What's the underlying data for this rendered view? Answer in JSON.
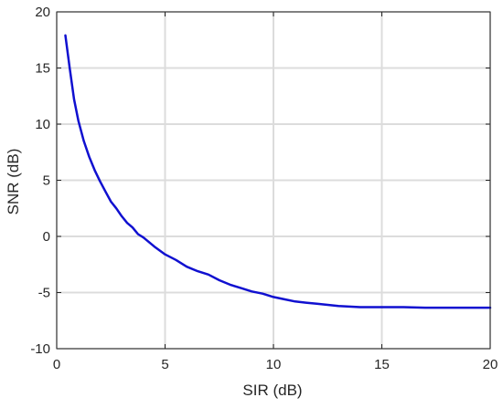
{
  "chart_data": {
    "type": "line",
    "title": "",
    "xlabel": "SIR (dB)",
    "ylabel": "SNR (dB)",
    "xlim": [
      0,
      20
    ],
    "ylim": [
      -10,
      20
    ],
    "xticks": [
      0,
      5,
      10,
      15,
      20
    ],
    "yticks": [
      -10,
      -5,
      0,
      5,
      10,
      15,
      20
    ],
    "xtick_labels": [
      "0",
      "5",
      "10",
      "15",
      "20"
    ],
    "ytick_labels": [
      "-10",
      "-5",
      "0",
      "5",
      "10",
      "15",
      "20"
    ],
    "grid": true,
    "legend": "none",
    "line_color": "#1010d0",
    "grid_color": "#dcdcdc",
    "series": [
      {
        "x": [
          0.4,
          0.6,
          0.8,
          1.0,
          1.25,
          1.5,
          1.75,
          2.0,
          2.25,
          2.5,
          2.75,
          3.0,
          3.25,
          3.5,
          3.75,
          4.0,
          4.25,
          4.5,
          5.0,
          5.5,
          6.0,
          6.5,
          7.0,
          7.5,
          8.0,
          8.5,
          9.0,
          9.5,
          10.0,
          10.5,
          11.0,
          11.5,
          12.0,
          12.5,
          13.0,
          13.5,
          14.0,
          15.0,
          16.0,
          17.0,
          18.0,
          19.0,
          20.0
        ],
        "y": [
          17.9,
          15.0,
          12.2,
          10.3,
          8.5,
          7.1,
          5.9,
          4.9,
          4.0,
          3.1,
          2.5,
          1.8,
          1.2,
          0.8,
          0.2,
          -0.1,
          -0.5,
          -0.9,
          -1.6,
          -2.1,
          -2.7,
          -3.1,
          -3.4,
          -3.9,
          -4.3,
          -4.6,
          -4.9,
          -5.1,
          -5.4,
          -5.6,
          -5.8,
          -5.9,
          -6.0,
          -6.1,
          -6.2,
          -6.25,
          -6.3,
          -6.3,
          -6.3,
          -6.35,
          -6.35,
          -6.35,
          -6.35
        ]
      }
    ]
  }
}
